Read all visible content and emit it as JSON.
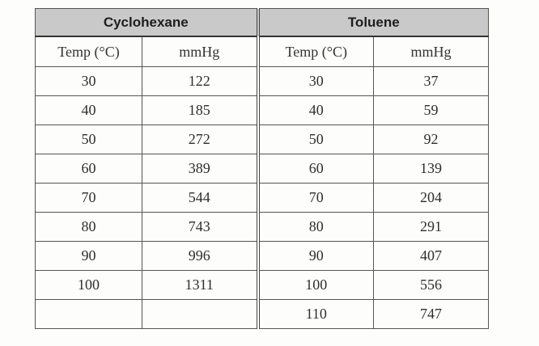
{
  "table": {
    "groups": [
      "Cyclohexane",
      "Toluene"
    ],
    "subheaders": [
      "Temp (°C)",
      "mmHg",
      "Temp (°C)",
      "mmHg"
    ],
    "rows": [
      [
        "30",
        "122",
        "30",
        "37"
      ],
      [
        "40",
        "185",
        "40",
        "59"
      ],
      [
        "50",
        "272",
        "50",
        "92"
      ],
      [
        "60",
        "389",
        "60",
        "139"
      ],
      [
        "70",
        "544",
        "70",
        "204"
      ],
      [
        "80",
        "743",
        "80",
        "291"
      ],
      [
        "90",
        "996",
        "90",
        "407"
      ],
      [
        "100",
        "1311",
        "100",
        "556"
      ],
      [
        "",
        "",
        "110",
        "747"
      ]
    ]
  }
}
